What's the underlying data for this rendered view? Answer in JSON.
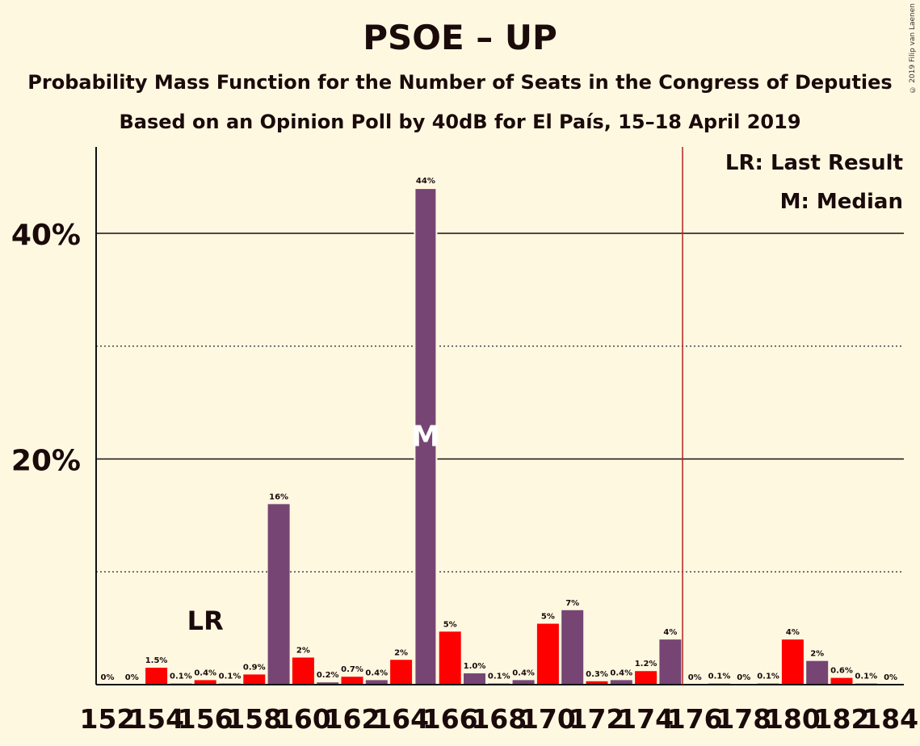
{
  "title": "PSOE – UP",
  "subtitle_1": "Probability Mass Function for the Number of Seats in the Congress of Deputies",
  "subtitle_2": "Based on an Opinion Poll by 40dB for El País, 15–18 April 2019",
  "copyright": "© 2019 Filip van Laenen",
  "legend": {
    "last_result": "LR: Last Result",
    "median": "M: Median"
  },
  "colors": {
    "psoe": "#FF0000",
    "up": "#774574",
    "background": "#FFF8E1",
    "majority_line": "#B22222"
  },
  "chart_data": {
    "type": "bar",
    "x": [
      152,
      153,
      154,
      155,
      156,
      157,
      158,
      159,
      160,
      161,
      162,
      163,
      164,
      165,
      166,
      167,
      168,
      169,
      170,
      171,
      172,
      173,
      174,
      175,
      176,
      177,
      178,
      179,
      180,
      181,
      182,
      183,
      184
    ],
    "values": [
      0,
      0,
      1.5,
      0.1,
      0.4,
      0.1,
      0.9,
      16,
      2.4,
      0.2,
      0.7,
      0.4,
      2.2,
      44,
      4.7,
      1.0,
      0.1,
      0.4,
      5.4,
      6.6,
      0.3,
      0.4,
      1.2,
      4.0,
      0,
      0.1,
      0,
      0.1,
      4.0,
      2.1,
      0.6,
      0.1,
      0
    ],
    "labels": [
      "0%",
      "0%",
      "1.5%",
      "0.1%",
      "0.4%",
      "0.1%",
      "0.9%",
      "16%",
      "2%",
      "0.2%",
      "0.7%",
      "0.4%",
      "2%",
      "44%",
      "5%",
      "1.0%",
      "0.1%",
      "0.4%",
      "5%",
      "7%",
      "0.3%",
      "0.4%",
      "1.2%",
      "4%",
      "0%",
      "0.1%",
      "0%",
      "0.1%",
      "4%",
      "2%",
      "0.6%",
      "0.1%",
      "0%"
    ],
    "tick_labels": [
      "152",
      "154",
      "156",
      "158",
      "160",
      "162",
      "164",
      "166",
      "168",
      "170",
      "172",
      "174",
      "176",
      "178",
      "180",
      "182",
      "184"
    ],
    "y_ticks": [
      "20%",
      "40%"
    ],
    "ylim": [
      0,
      46
    ],
    "solid_gridlines": [
      20,
      40
    ],
    "dotted_gridlines": [
      10,
      30
    ],
    "last_result_seat": 156,
    "last_result_marker": "LR",
    "median_seat": 165,
    "median_marker": "M",
    "majority_line_after_seat": 175
  }
}
